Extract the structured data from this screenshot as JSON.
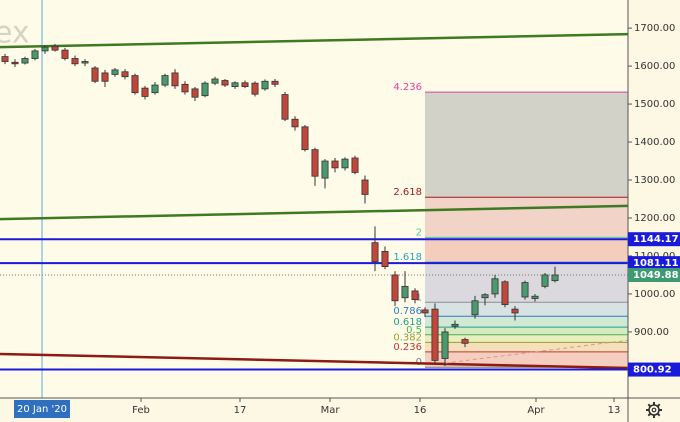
{
  "chart_data": {
    "type": "candlestick",
    "watermark": "ex",
    "xlim": [
      -0.5,
      62.3
    ],
    "ylim": [
      726,
      1774
    ],
    "xticks": [
      {
        "value": 13.6,
        "label": "Feb"
      },
      {
        "value": 23.5,
        "label": "17"
      },
      {
        "value": 32.5,
        "label": "Mar"
      },
      {
        "value": 41.5,
        "label": "16"
      },
      {
        "value": 53.1,
        "label": "Apr"
      },
      {
        "value": 60.9,
        "label": "13"
      }
    ],
    "yticks": [
      {
        "value": 900,
        "label": "900.00"
      },
      {
        "value": 1000,
        "label": "1000.00"
      },
      {
        "value": 1100,
        "label": "1100.00"
      },
      {
        "value": 1200,
        "label": "1200.00"
      },
      {
        "value": 1300,
        "label": "1300.00"
      },
      {
        "value": 1400,
        "label": "1400.00"
      },
      {
        "value": 1500,
        "label": "1500.00"
      },
      {
        "value": 1600,
        "label": "1600.00"
      },
      {
        "value": 1700,
        "label": "1700.00"
      }
    ],
    "grid": false,
    "up_color": "#4a9a6e",
    "down_color": "#c0473b",
    "crosshair": {
      "x": 3.7,
      "label": "20 Jan '20",
      "color": "#5aa9e6"
    },
    "candles": {
      "open": [
        1625,
        1610,
        1608,
        1620,
        1640,
        1652,
        1642,
        1620,
        1608,
        1595,
        1582,
        1578,
        1585,
        1575,
        1542,
        1530,
        1550,
        1582,
        1552,
        1540,
        1522,
        1555,
        1562,
        1546,
        1556,
        1555,
        1540,
        1560,
        1525,
        1460,
        1440,
        1380,
        1305,
        1350,
        1332,
        1358,
        1300,
        1135,
        1112,
        1050,
        990,
        1008,
        958,
        960,
        830,
        915,
        880,
        945,
        990,
        1000,
        1032,
        960,
        992,
        988,
        1020,
        1035
      ],
      "high": [
        1632,
        1618,
        1625,
        1645,
        1655,
        1658,
        1648,
        1628,
        1618,
        1600,
        1590,
        1595,
        1592,
        1580,
        1548,
        1558,
        1580,
        1592,
        1560,
        1545,
        1560,
        1572,
        1566,
        1560,
        1562,
        1560,
        1565,
        1566,
        1532,
        1468,
        1445,
        1385,
        1355,
        1358,
        1360,
        1364,
        1312,
        1178,
        1125,
        1060,
        1060,
        1015,
        965,
        975,
        910,
        930,
        885,
        995,
        1002,
        1050,
        1036,
        968,
        1035,
        1000,
        1055,
        1072
      ],
      "low": [
        1605,
        1598,
        1604,
        1615,
        1632,
        1638,
        1615,
        1600,
        1600,
        1555,
        1545,
        1572,
        1565,
        1525,
        1512,
        1525,
        1545,
        1540,
        1525,
        1508,
        1518,
        1550,
        1545,
        1540,
        1542,
        1520,
        1535,
        1545,
        1455,
        1430,
        1375,
        1285,
        1278,
        1320,
        1325,
        1315,
        1238,
        1060,
        1065,
        968,
        978,
        975,
        940,
        815,
        810,
        908,
        860,
        935,
        970,
        990,
        965,
        930,
        985,
        980,
        1015,
        1030
      ],
      "close": [
        1612,
        1606,
        1620,
        1640,
        1650,
        1642,
        1620,
        1606,
        1612,
        1560,
        1560,
        1590,
        1572,
        1530,
        1520,
        1550,
        1575,
        1548,
        1532,
        1518,
        1555,
        1566,
        1550,
        1556,
        1546,
        1526,
        1560,
        1552,
        1460,
        1440,
        1380,
        1310,
        1350,
        1332,
        1355,
        1320,
        1262,
        1085,
        1072,
        982,
        1020,
        985,
        950,
        825,
        900,
        920,
        870,
        982,
        998,
        1040,
        972,
        950,
        1030,
        994,
        1050,
        1049.88
      ]
    },
    "fib": {
      "x_start": 42,
      "from": 807,
      "to": 978,
      "levels": [
        {
          "ratio": 0,
          "color": "#787b86",
          "fill": "#f3c6b8"
        },
        {
          "ratio": 0.236,
          "color": "#c0392b",
          "fill": "#f5d9b4"
        },
        {
          "ratio": 0.382,
          "color": "#9aa02a",
          "fill": "#e5ebb6"
        },
        {
          "ratio": 0.5,
          "color": "#4caf50",
          "fill": "#cde8b8"
        },
        {
          "ratio": 0.618,
          "color": "#1f9f8c",
          "fill": "#c8e4d0"
        },
        {
          "ratio": 0.786,
          "color": "#3179c4",
          "fill": "#d2dde0"
        },
        {
          "ratio": 1,
          "color": "#8a8d96",
          "fill": "#d6d2dc"
        },
        {
          "ratio": 1.618,
          "color": "#2a9fc4",
          "fill": "#f2c4b4"
        },
        {
          "ratio": 2,
          "color": "#4dc9a0",
          "fill": "#eecbc2"
        },
        {
          "ratio": 2.618,
          "color": "#a01c1c",
          "fill": "#cbcac2"
        },
        {
          "ratio": 4.236,
          "color": "#e040a0",
          "fill": "#cbcac2"
        }
      ]
    },
    "trend_lines": [
      {
        "color": "#3d7a22",
        "from": [
          -0.5,
          1650
        ],
        "to": [
          62.3,
          1684
        ]
      },
      {
        "color": "#3d7a22",
        "from": [
          -0.5,
          1197
        ],
        "to": [
          62.3,
          1232
        ]
      },
      {
        "color": "#8e1a12",
        "from": [
          -0.5,
          842
        ],
        "to": [
          62.3,
          805
        ]
      },
      {
        "color": "#d49a90",
        "dash": true,
        "from": [
          44,
          818
        ],
        "to": [
          62.3,
          878
        ]
      }
    ],
    "levels": [
      {
        "value": 1144.17,
        "color": "#1a1adb"
      },
      {
        "value": 1081.11,
        "color": "#1a1adb"
      },
      {
        "value": 800.92,
        "color": "#1a1adb"
      }
    ],
    "price_color": "#3d9a72"
  }
}
